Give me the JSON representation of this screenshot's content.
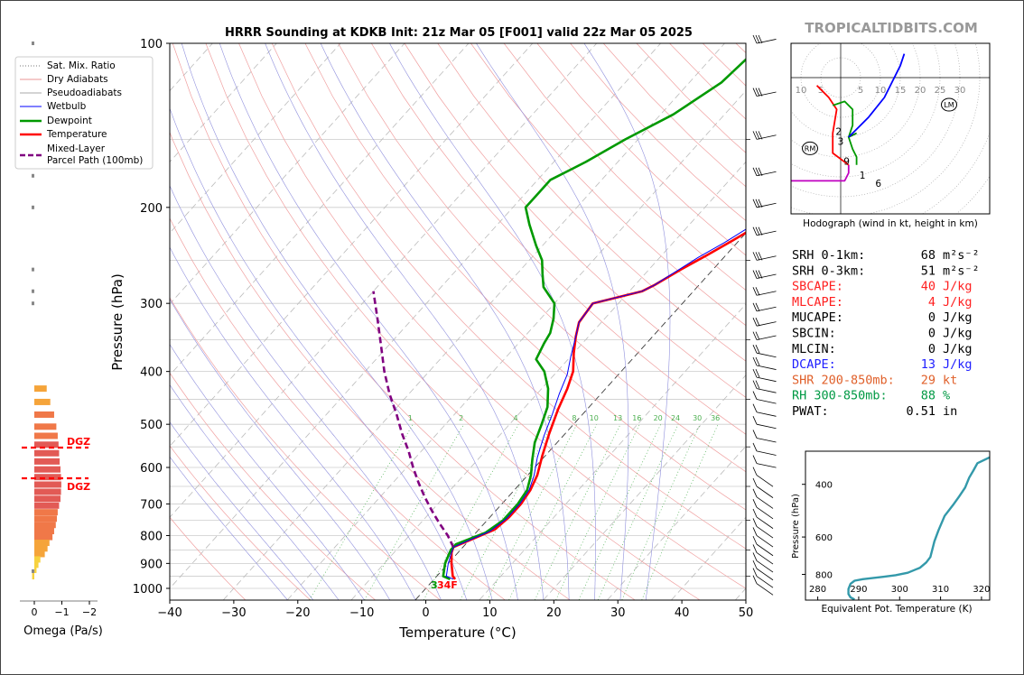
{
  "title": "HRRR Sounding at KDKB Init: 21z Mar 05 [F001] valid 22z Mar 05 2025",
  "watermark": "TROPICALTIDBITS.COM",
  "chart_data": [
    {
      "type": "line",
      "name": "skew-t",
      "xlabel": "Temperature (°C)",
      "ylabel": "Pressure (hPa)",
      "xlim": [
        -40,
        50
      ],
      "ylim": [
        1050,
        100
      ],
      "y_scale": "log",
      "x_ticks": [
        "−40",
        "−30",
        "−20",
        "−10",
        "0",
        "10",
        "20",
        "30",
        "40",
        "50"
      ],
      "y_ticks": [
        "100",
        "200",
        "300",
        "400",
        "500",
        "600",
        "700",
        "800",
        "900",
        "1000"
      ],
      "legend": [
        "Sat. Mix. Ratio",
        "Dry Adiabats",
        "Pseudoadiabats",
        "Wetbulb",
        "Dewpoint",
        "Temperature",
        "Mixed-Layer",
        "Parcel Path (100mb)"
      ],
      "legend_position": "top-left",
      "mixing_ratio_labels": [
        "1",
        "2",
        "4",
        "6",
        "8",
        "10",
        "13",
        "16",
        "20",
        "24",
        "30",
        "36"
      ],
      "surface_label": "34F",
      "surface_dewpoint_label": "3",
      "colors": {
        "temperature": "#ff0000",
        "dewpoint": "#009900",
        "wetbulb": "#0000ff",
        "parcel": "#800080",
        "dgz": "#ff0000"
      },
      "series": [
        {
          "name": "Temperature",
          "points": [
            [
              3.3,
              962
            ],
            [
              2.5,
              950
            ],
            [
              0.5,
              900
            ],
            [
              -1.0,
              860
            ],
            [
              -1.5,
              840
            ],
            [
              2.5,
              780
            ],
            [
              3.0,
              740
            ],
            [
              3.0,
              700
            ],
            [
              2.5,
              660
            ],
            [
              1.5,
              620
            ],
            [
              -0.5,
              570
            ],
            [
              -2.5,
              520
            ],
            [
              -4.5,
              470
            ],
            [
              -6,
              430
            ],
            [
              -7.5,
              400
            ],
            [
              -10,
              370
            ],
            [
              -12,
              345
            ],
            [
              -13.5,
              325
            ],
            [
              -14,
              300
            ],
            [
              -8,
              285
            ],
            [
              -7,
              278
            ],
            [
              -5,
              260
            ],
            [
              -3,
              245
            ],
            [
              -1,
              230
            ],
            [
              1,
              215
            ],
            [
              3,
              205
            ],
            [
              6,
              190
            ],
            [
              8,
              180
            ],
            [
              8.5,
              170
            ],
            [
              9,
              160
            ],
            [
              9.5,
              145
            ],
            [
              10,
              130
            ],
            [
              10.5,
              115
            ],
            [
              11,
              100
            ]
          ]
        },
        {
          "name": "Dewpoint",
          "points": [
            [
              2.5,
              962
            ],
            [
              1.0,
              950
            ],
            [
              -0.5,
              900
            ],
            [
              -1.5,
              850
            ],
            [
              -1.5,
              830
            ],
            [
              1.5,
              790
            ],
            [
              2.5,
              750
            ],
            [
              2.5,
              700
            ],
            [
              2.0,
              660
            ],
            [
              0.5,
              620
            ],
            [
              -1.5,
              580
            ],
            [
              -3.5,
              540
            ],
            [
              -5,
              500
            ],
            [
              -6.5,
              465
            ],
            [
              -9,
              430
            ],
            [
              -12,
              400
            ],
            [
              -15,
              380
            ],
            [
              -16,
              355
            ],
            [
              -16.5,
              340
            ],
            [
              -18,
              320
            ],
            [
              -20,
              300
            ],
            [
              -24,
              280
            ],
            [
              -26,
              265
            ],
            [
              -28,
              250
            ],
            [
              -31,
              235
            ],
            [
              -35,
              215
            ],
            [
              -38,
              200
            ],
            [
              -38,
              190
            ],
            [
              -38,
              178
            ],
            [
              -35,
              165
            ],
            [
              -32,
              150
            ],
            [
              -28,
              135
            ],
            [
              -25,
              118
            ],
            [
              -24,
              100
            ]
          ]
        },
        {
          "name": "Wetbulb",
          "points": [
            [
              3.0,
              962
            ],
            [
              1.5,
              950
            ],
            [
              0,
              900
            ],
            [
              -1.0,
              860
            ],
            [
              -1.5,
              840
            ],
            [
              2.0,
              785
            ],
            [
              2.8,
              745
            ],
            [
              2.8,
              700
            ],
            [
              2.3,
              660
            ],
            [
              1.0,
              620
            ],
            [
              -1.0,
              575
            ],
            [
              -3,
              525
            ],
            [
              -4.7,
              480
            ],
            [
              -6.5,
              440
            ],
            [
              -8,
              405
            ],
            [
              -10,
              375
            ],
            [
              -12,
              345
            ],
            [
              -13.5,
              325
            ],
            [
              -14,
              300
            ],
            [
              -8,
              285
            ],
            [
              -7,
              278
            ],
            [
              -5.5,
              262
            ],
            [
              -4,
              247
            ],
            [
              -2,
              232
            ],
            [
              0,
              215
            ],
            [
              3,
              200
            ],
            [
              6,
              180
            ],
            [
              7,
              170
            ],
            [
              7.5,
              160
            ],
            [
              8,
              145
            ],
            [
              8.5,
              130
            ],
            [
              9,
              115
            ],
            [
              9.5,
              100
            ]
          ]
        },
        {
          "name": "Mixed-Layer Parcel Path (100mb)",
          "points": [
            [
              -1.5,
              840
            ],
            [
              -4,
              800
            ],
            [
              -7,
              760
            ],
            [
              -10,
              720
            ],
            [
              -13,
              680
            ],
            [
              -16,
              640
            ],
            [
              -19,
              600
            ],
            [
              -22,
              560
            ],
            [
              -25.5,
              520
            ],
            [
              -29,
              480
            ],
            [
              -33,
              440
            ],
            [
              -37,
              400
            ],
            [
              -41,
              360
            ],
            [
              -45.5,
              320
            ],
            [
              -50,
              285
            ]
          ]
        }
      ],
      "dgz_levels": [
        557,
        630
      ],
      "dgz_label": "DGZ"
    },
    {
      "type": "bar",
      "name": "omega",
      "xlabel": "Omega (Pa/s)",
      "x_ticks": [
        "0",
        "−1",
        "−2"
      ],
      "xlim": [
        0.2,
        -2.4
      ],
      "bars": [
        [
          430,
          -0.45
        ],
        [
          455,
          -0.58
        ],
        [
          480,
          -0.72
        ],
        [
          505,
          -0.8
        ],
        [
          525,
          -0.85
        ],
        [
          545,
          -0.88
        ],
        [
          565,
          -0.9
        ],
        [
          585,
          -0.92
        ],
        [
          605,
          -0.95
        ],
        [
          625,
          -0.97
        ],
        [
          645,
          -0.98
        ],
        [
          665,
          -0.97
        ],
        [
          685,
          -0.95
        ],
        [
          705,
          -0.9
        ],
        [
          725,
          -0.85
        ],
        [
          745,
          -0.82
        ],
        [
          765,
          -0.78
        ],
        [
          785,
          -0.72
        ],
        [
          805,
          -0.66
        ],
        [
          825,
          -0.55
        ],
        [
          845,
          -0.48
        ],
        [
          865,
          -0.38
        ],
        [
          885,
          -0.22
        ],
        [
          905,
          -0.15
        ],
        [
          925,
          -0.08
        ],
        [
          950,
          0.08
        ]
      ]
    },
    {
      "type": "line",
      "name": "hodograph",
      "caption": "Hodograph (wind in kt, height in km)",
      "ring_labels": [
        "10",
        "5",
        "5",
        "10",
        "15",
        "20",
        "25",
        "30"
      ],
      "height_labels": [
        "1",
        "2",
        "3",
        "6",
        "9"
      ],
      "markers": [
        "RM",
        "LM"
      ],
      "series": [
        {
          "name": "0-1 km",
          "color": "#c000c0",
          "points": [
            [
              -13,
              -26
            ],
            [
              -10,
              -26
            ],
            [
              -5,
              -26
            ],
            [
              1,
              -26
            ],
            [
              2,
              -24
            ],
            [
              2,
              -22
            ]
          ]
        },
        {
          "name": "1-3 km",
          "color": "#ff0000",
          "points": [
            [
              2,
              -22
            ],
            [
              -2,
              -19
            ],
            [
              -2,
              -14
            ],
            [
              -1,
              -8
            ],
            [
              -3,
              -5
            ],
            [
              -6,
              -2
            ]
          ]
        },
        {
          "name": "3-6 km",
          "color": "#009900",
          "points": [
            [
              -2,
              -7
            ],
            [
              1,
              -6
            ],
            [
              3,
              -8
            ],
            [
              3,
              -12
            ],
            [
              2,
              -15
            ],
            [
              3,
              -18
            ],
            [
              4,
              -20
            ],
            [
              4,
              -22
            ]
          ]
        },
        {
          "name": "6-9 km",
          "color": "#008800",
          "points": [
            [
              2,
              -15
            ],
            [
              4,
              -14
            ]
          ]
        },
        {
          "name": "9-12 km",
          "color": "#0000ff",
          "points": [
            [
              2,
              -15
            ],
            [
              7,
              -10
            ],
            [
              11,
              -5
            ],
            [
              13,
              -1
            ],
            [
              15,
              3
            ],
            [
              16,
              6
            ]
          ]
        }
      ]
    },
    {
      "type": "line",
      "name": "theta-e",
      "xlabel": "Equivalent Pot. Temperature (K)",
      "ylabel": "Pressure (hPa)",
      "x_ticks": [
        "280",
        "290",
        "300",
        "310",
        "320"
      ],
      "y_ticks": [
        "400",
        "600",
        "800"
      ],
      "xlim": [
        277,
        322
      ],
      "ylim": [
        975,
        310
      ],
      "color": "#3399aa",
      "points": [
        [
          289,
          970
        ],
        [
          288,
          955
        ],
        [
          287.5,
          930
        ],
        [
          287.5,
          895
        ],
        [
          288,
          860
        ],
        [
          289,
          840
        ],
        [
          291,
          830
        ],
        [
          296,
          815
        ],
        [
          299,
          805
        ],
        [
          302,
          790
        ],
        [
          305,
          760
        ],
        [
          306.5,
          730
        ],
        [
          307.5,
          700
        ],
        [
          308,
          660
        ],
        [
          308.5,
          620
        ],
        [
          309.5,
          570
        ],
        [
          311,
          510
        ],
        [
          313,
          470
        ],
        [
          314.5,
          440
        ],
        [
          316,
          410
        ],
        [
          317,
          380
        ],
        [
          318,
          360
        ],
        [
          319,
          340
        ],
        [
          322,
          325
        ]
      ]
    }
  ],
  "indices": [
    {
      "label": "SRH 0-1km:",
      "value": "68",
      "unit": "m²s⁻²",
      "color": "#000000"
    },
    {
      "label": "SRH 0-3km:",
      "value": "51",
      "unit": "m²s⁻²",
      "color": "#000000"
    },
    {
      "label": "SBCAPE:",
      "value": "40",
      "unit": "J/kg",
      "color": "#ff2020"
    },
    {
      "label": "MLCAPE:",
      "value": "4",
      "unit": "J/kg",
      "color": "#ff2020"
    },
    {
      "label": "MUCAPE:",
      "value": "0",
      "unit": "J/kg",
      "color": "#000000"
    },
    {
      "label": "SBCIN:",
      "value": "0",
      "unit": "J/kg",
      "color": "#000000"
    },
    {
      "label": "MLCIN:",
      "value": "0",
      "unit": "J/kg",
      "color": "#000000"
    },
    {
      "label": "DCAPE:",
      "value": "13",
      "unit": "J/kg",
      "color": "#2020ff"
    },
    {
      "label": "SHR 200-850mb:",
      "value": "29",
      "unit": "kt",
      "color": "#e0602a"
    },
    {
      "label": "RH 300-850mb:",
      "value": "88",
      "unit": "%",
      "color": "#009944"
    },
    {
      "label": "PWAT:",
      "value": "0.51",
      "unit": "in",
      "color": "#000000"
    }
  ]
}
